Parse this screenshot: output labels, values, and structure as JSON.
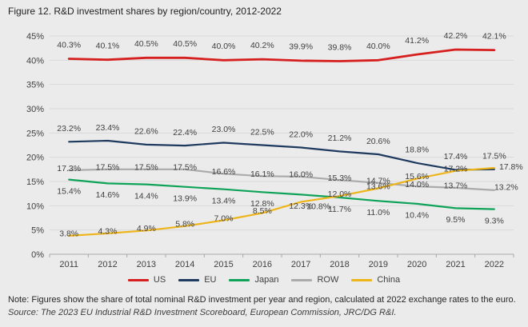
{
  "figure": {
    "title": "Figure 12. R&D investment shares by region/country, 2012-2022",
    "note": "Note: Figures show the share of total nominal R&D investment per year and region, calculated at 2022 exchange rates to the euro.",
    "source": "Source: The 2023 EU Industrial R&D Investment Scoreboard, European Commission, JRC/DG R&I."
  },
  "chart_data": {
    "type": "line",
    "x": [
      "2011",
      "2012",
      "2013",
      "2014",
      "2015",
      "2016",
      "2017",
      "2018",
      "2019",
      "2020",
      "2021",
      "2022"
    ],
    "series": [
      {
        "name": "US",
        "color": "#d6201f",
        "values": [
          40.3,
          40.1,
          40.5,
          40.5,
          40.0,
          40.2,
          39.9,
          39.8,
          40.0,
          41.2,
          42.2,
          42.1
        ]
      },
      {
        "name": "EU",
        "color": "#1f3a5f",
        "values": [
          23.2,
          23.4,
          22.6,
          22.4,
          23.0,
          22.5,
          22.0,
          21.2,
          20.6,
          18.8,
          17.4,
          17.5
        ]
      },
      {
        "name": "Japan",
        "color": "#0ea358",
        "values": [
          15.4,
          14.6,
          14.4,
          13.9,
          13.4,
          12.8,
          12.3,
          11.7,
          11.0,
          10.4,
          9.5,
          9.3
        ]
      },
      {
        "name": "ROW",
        "color": "#ababab",
        "values": [
          17.3,
          17.5,
          17.5,
          17.5,
          16.6,
          16.1,
          16.0,
          15.3,
          14.7,
          14.0,
          13.7,
          13.2
        ]
      },
      {
        "name": "China",
        "color": "#eeb51b",
        "values": [
          3.8,
          4.3,
          4.9,
          5.8,
          7.0,
          8.5,
          10.8,
          12.0,
          13.6,
          15.6,
          17.2,
          17.8
        ]
      }
    ],
    "ylim": [
      0,
      45
    ],
    "yticks": [
      "0%",
      "5%",
      "10%",
      "15%",
      "20%",
      "25%",
      "30%",
      "35%",
      "40%",
      "45%"
    ],
    "ytick_step": 5,
    "label_format": "percent_one_decimal",
    "grid": "horizontal",
    "legend_position": "bottom",
    "legend": [
      "US",
      "EU",
      "Japan",
      "ROW",
      "China"
    ]
  }
}
